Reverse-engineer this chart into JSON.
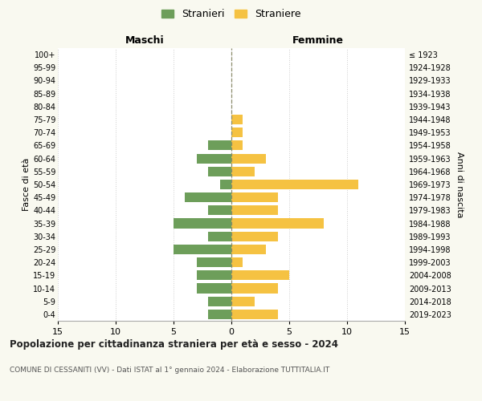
{
  "age_groups": [
    "100+",
    "95-99",
    "90-94",
    "85-89",
    "80-84",
    "75-79",
    "70-74",
    "65-69",
    "60-64",
    "55-59",
    "50-54",
    "45-49",
    "40-44",
    "35-39",
    "30-34",
    "25-29",
    "20-24",
    "15-19",
    "10-14",
    "5-9",
    "0-4"
  ],
  "birth_years": [
    "≤ 1923",
    "1924-1928",
    "1929-1933",
    "1934-1938",
    "1939-1943",
    "1944-1948",
    "1949-1953",
    "1954-1958",
    "1959-1963",
    "1964-1968",
    "1969-1973",
    "1974-1978",
    "1979-1983",
    "1984-1988",
    "1989-1993",
    "1994-1998",
    "1999-2003",
    "2004-2008",
    "2009-2013",
    "2014-2018",
    "2019-2023"
  ],
  "males": [
    0,
    0,
    0,
    0,
    0,
    0,
    0,
    2,
    3,
    2,
    1,
    4,
    2,
    5,
    2,
    5,
    3,
    3,
    3,
    2,
    2
  ],
  "females": [
    0,
    0,
    0,
    0,
    0,
    1,
    1,
    1,
    3,
    2,
    11,
    4,
    4,
    8,
    4,
    3,
    1,
    5,
    4,
    2,
    4
  ],
  "male_color": "#6d9e5a",
  "female_color": "#f5c242",
  "center_line_color": "#8B8B6B",
  "title": "Popolazione per cittadinanza straniera per età e sesso - 2024",
  "subtitle": "COMUNE DI CESSANITI (VV) - Dati ISTAT al 1° gennaio 2024 - Elaborazione TUTTITALIA.IT",
  "xlabel_left": "Maschi",
  "xlabel_right": "Femmine",
  "ylabel_left": "Fasce di età",
  "ylabel_right": "Anni di nascita",
  "legend_male": "Stranieri",
  "legend_female": "Straniere",
  "xlim": 15,
  "background_color": "#f9f9f0",
  "plot_background": "#ffffff",
  "grid_color": "#cccccc"
}
